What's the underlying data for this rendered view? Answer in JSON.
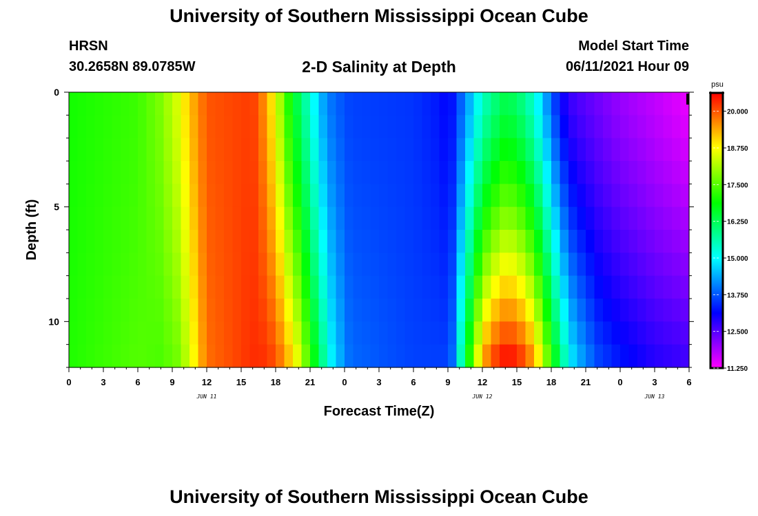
{
  "header": {
    "title": "University of Southern Mississippi Ocean Cube",
    "station": "HRSN",
    "coords": "30.2658N  89.0785W",
    "plot_title": "2-D Salinity at Depth",
    "start_label": "Model Start Time",
    "start_value": "06/11/2021 Hour 09"
  },
  "footer": {
    "title": "University of Southern Mississippi Ocean Cube"
  },
  "chart_data": {
    "type": "heatmap",
    "title": "2-D Salinity at Depth",
    "xlabel": "Forecast Time(Z)",
    "ylabel": "Depth (ft)",
    "x_range_hours": [
      0,
      54
    ],
    "y_range_ft": [
      0,
      12
    ],
    "x_ticks": [
      "0",
      "3",
      "6",
      "9",
      "12",
      "15",
      "18",
      "21",
      "0",
      "3",
      "6",
      "9",
      "12",
      "15",
      "18",
      "21",
      "0",
      "3",
      "6"
    ],
    "y_ticks": [
      {
        "label": "0",
        "value": 0
      },
      {
        "label": "5",
        "value": 5
      },
      {
        "label": "10",
        "value": 10
      }
    ],
    "date_labels": [
      {
        "label": "JUN 11",
        "hour": 12
      },
      {
        "label": "JUN 12",
        "hour": 36
      },
      {
        "label": "JUN 13",
        "hour": 51
      }
    ],
    "colorbar": {
      "unit": "psu",
      "min": 11.25,
      "max": 20.625,
      "ticks": [
        "20.000",
        "18.750",
        "17.500",
        "16.250",
        "15.000",
        "13.750",
        "12.500",
        "11.250"
      ],
      "tick_values": [
        20.0,
        18.75,
        17.5,
        16.25,
        15.0,
        13.75,
        12.5,
        11.25
      ]
    },
    "profiles": [
      {
        "hour": 0,
        "surface": 17.0,
        "bottom": 17.1
      },
      {
        "hour": 6,
        "surface": 17.3,
        "bottom": 17.5
      },
      {
        "hour": 8,
        "surface": 17.8,
        "bottom": 17.4
      },
      {
        "hour": 9.5,
        "surface": 18.5,
        "bottom": 17.7
      },
      {
        "hour": 10.5,
        "surface": 19.2,
        "bottom": 18.4
      },
      {
        "hour": 12,
        "surface": 20.0,
        "bottom": 19.8
      },
      {
        "hour": 16,
        "surface": 20.2,
        "bottom": 20.3
      },
      {
        "hour": 17,
        "surface": 19.6,
        "bottom": 20.3
      },
      {
        "hour": 18,
        "surface": 18.6,
        "bottom": 20.1
      },
      {
        "hour": 19,
        "surface": 17.2,
        "bottom": 19.4
      },
      {
        "hour": 20,
        "surface": 16.2,
        "bottom": 18.6
      },
      {
        "hour": 21,
        "surface": 15.3,
        "bottom": 17.3
      },
      {
        "hour": 22,
        "surface": 14.4,
        "bottom": 16.0
      },
      {
        "hour": 23,
        "surface": 13.9,
        "bottom": 14.8
      },
      {
        "hour": 24.5,
        "surface": 13.6,
        "bottom": 13.9
      },
      {
        "hour": 30,
        "surface": 13.5,
        "bottom": 13.6
      },
      {
        "hour": 32,
        "surface": 13.3,
        "bottom": 13.6
      },
      {
        "hour": 33,
        "surface": 13.1,
        "bottom": 13.6
      },
      {
        "hour": 33.5,
        "surface": 13.3,
        "bottom": 14.0
      },
      {
        "hour": 34,
        "surface": 13.7,
        "bottom": 15.3
      },
      {
        "hour": 35,
        "surface": 14.5,
        "bottom": 17.5
      },
      {
        "hour": 36,
        "surface": 15.4,
        "bottom": 19.5
      },
      {
        "hour": 37,
        "surface": 15.9,
        "bottom": 20.3
      },
      {
        "hour": 38,
        "surface": 16.3,
        "bottom": 20.7
      },
      {
        "hour": 39,
        "surface": 16.1,
        "bottom": 20.6
      },
      {
        "hour": 40,
        "surface": 15.6,
        "bottom": 20.0
      },
      {
        "hour": 41,
        "surface": 14.8,
        "bottom": 18.9
      },
      {
        "hour": 42,
        "surface": 13.8,
        "bottom": 17.3
      },
      {
        "hour": 43,
        "surface": 13.0,
        "bottom": 15.8
      },
      {
        "hour": 44,
        "surface": 12.6,
        "bottom": 14.7
      },
      {
        "hour": 46,
        "surface": 12.3,
        "bottom": 13.7
      },
      {
        "hour": 48,
        "surface": 12.0,
        "bottom": 13.3
      },
      {
        "hour": 51,
        "surface": 11.7,
        "bottom": 12.9
      },
      {
        "hour": 54,
        "surface": 11.4,
        "bottom": 12.7
      }
    ]
  }
}
